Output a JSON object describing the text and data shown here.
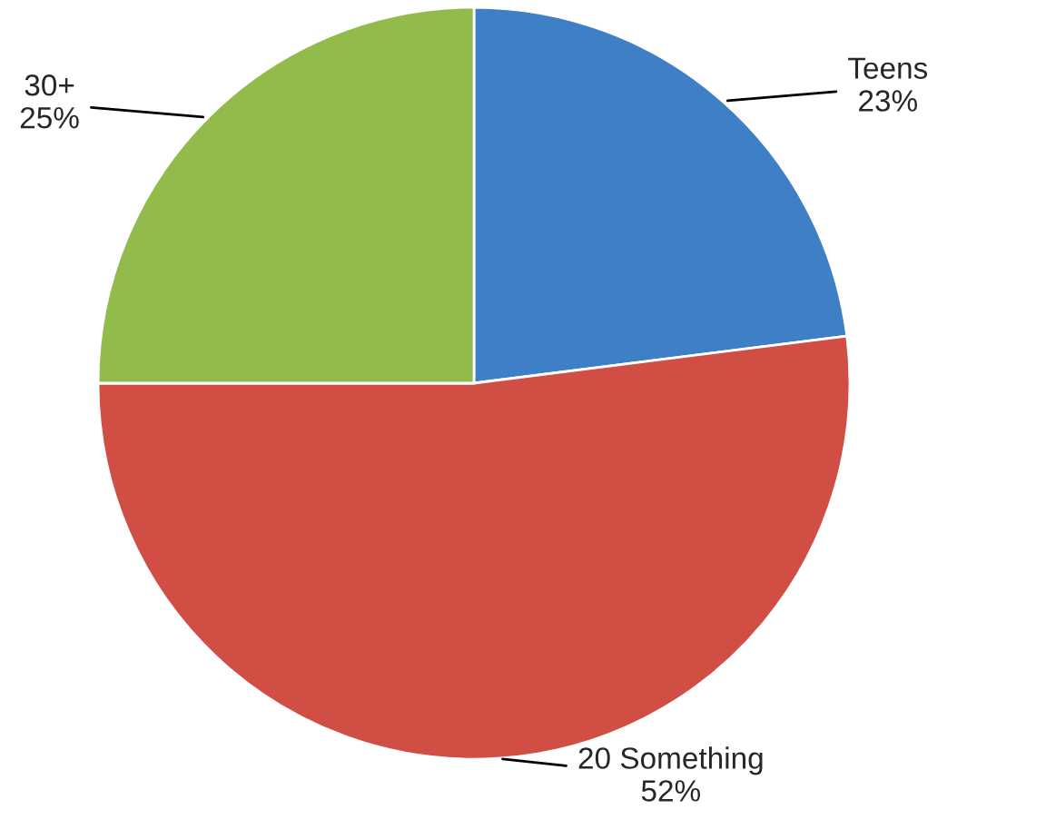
{
  "chart_data": {
    "type": "pie",
    "categories": [
      "Teens",
      "20 Something",
      "30+"
    ],
    "values": [
      23,
      52,
      25
    ],
    "value_labels": [
      "23%",
      "52%",
      "25%"
    ],
    "colors": [
      "#3f7fc6",
      "#d04e43",
      "#93bb4c"
    ]
  }
}
